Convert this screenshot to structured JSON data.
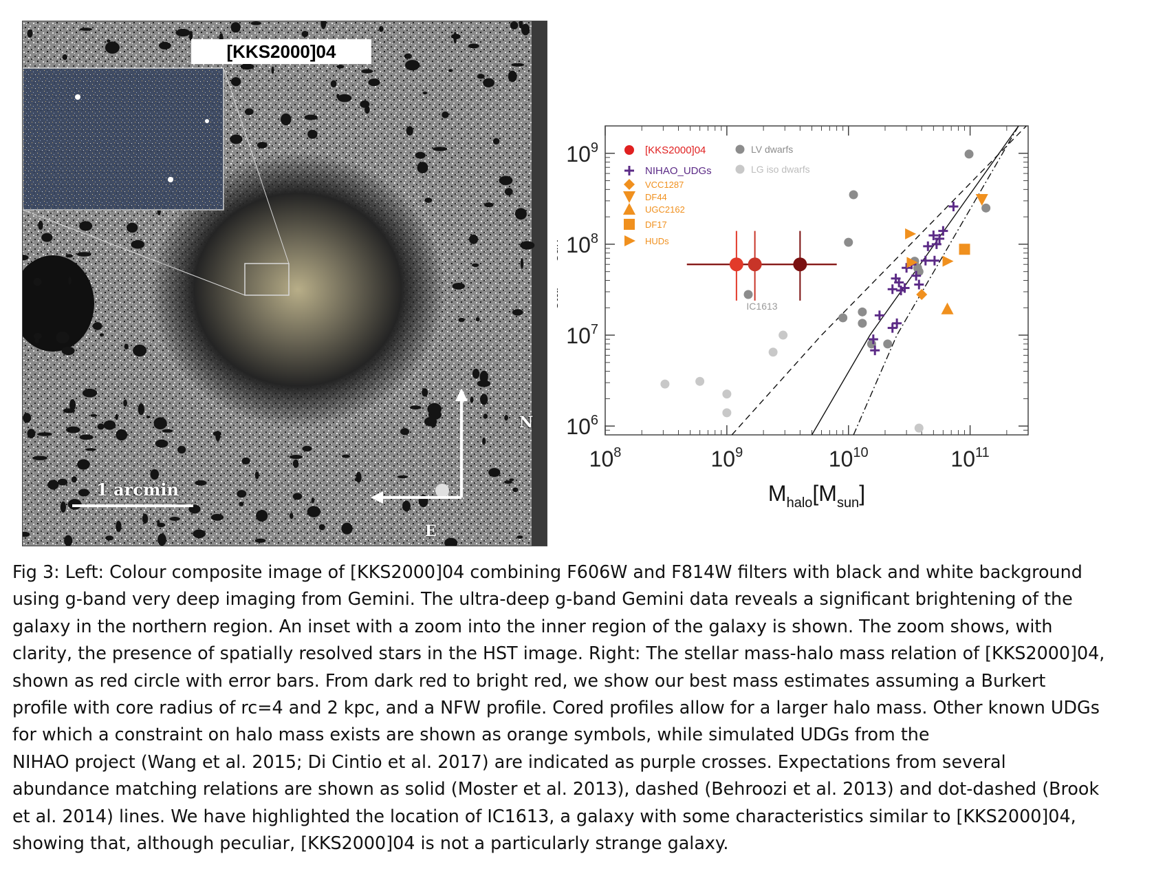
{
  "left_panel": {
    "target_label": "[KKS2000]04",
    "scale_bar_label": "1 arcmin",
    "compass_north": "N",
    "compass_east": "E"
  },
  "chart_data": {
    "type": "scatter",
    "xlabel": "M_halo[M_sun]",
    "ylabel": "M_star[M_sun]",
    "xscale": "log",
    "yscale": "log",
    "xlim": [
      100000000.0,
      300000000000.0
    ],
    "ylim": [
      800000.0,
      2000000000.0
    ],
    "x_ticks": [
      "10^8",
      "10^9",
      "10^10",
      "10^11"
    ],
    "y_ticks": [
      "10^6",
      "10^7",
      "10^8",
      "10^9"
    ],
    "legend_placement": "top-left",
    "legend": [
      {
        "label": "[KKS2000]04",
        "color": "#e02020",
        "marker": "circle"
      },
      {
        "label": "LV dwarfs",
        "color": "#8c8c8c",
        "marker": "circle"
      },
      {
        "label": "NIHAO_UDGs",
        "color": "#5b2a86",
        "marker": "cross"
      },
      {
        "label": "LG iso dwarfs",
        "color": "#c8c8c8",
        "marker": "circle"
      },
      {
        "label": "VCC1287",
        "color": "#f0901e",
        "marker": "diamond"
      },
      {
        "label": "DF44",
        "color": "#f0901e",
        "marker": "triangle-down"
      },
      {
        "label": "UGC2162",
        "color": "#f0901e",
        "marker": "triangle-up"
      },
      {
        "label": "DF17",
        "color": "#f0901e",
        "marker": "square"
      },
      {
        "label": "HUDs",
        "color": "#f0901e",
        "marker": "triangle-right"
      }
    ],
    "annotation": "IC1613",
    "series": [
      {
        "name": "[KKS2000]04",
        "marker": "circle-errorbar",
        "points": [
          {
            "x": 1200000000.0,
            "y": 60000000.0,
            "xerr": [
              470000000.0,
              8000000000.0
            ],
            "yerr": [
              24000000.0,
              140000000.0
            ],
            "color": "#e23a2a"
          },
          {
            "x": 1700000000.0,
            "y": 60000000.0,
            "xerr": [
              470000000.0,
              8000000000.0
            ],
            "yerr": [
              24000000.0,
              140000000.0
            ],
            "color": "#c83428"
          },
          {
            "x": 4000000000.0,
            "y": 60000000.0,
            "xerr": [
              470000000.0,
              8000000000.0
            ],
            "yerr": [
              24000000.0,
              140000000.0
            ],
            "color": "#7a1010"
          }
        ]
      },
      {
        "name": "LV dwarfs",
        "marker": "circle",
        "color": "#8c8c8c",
        "points": [
          [
            1500000000.0,
            28000000.0
          ],
          [
            11000000000.0,
            350000000.0
          ],
          [
            10000000000.0,
            105000000.0
          ],
          [
            9000000000.0,
            15500000.0
          ],
          [
            13000000000.0,
            18000000.0
          ],
          [
            13000000000.0,
            13500000.0
          ],
          [
            15500000000.0,
            8000000.0
          ],
          [
            21000000000.0,
            8000000.0
          ],
          [
            35000000000.0,
            65000000.0
          ],
          [
            37000000000.0,
            55000000.0
          ],
          [
            38000000000.0,
            50000000.0
          ],
          [
            98000000000.0,
            980000000.0
          ],
          [
            135000000000.0,
            250000000.0
          ]
        ]
      },
      {
        "name": "LG iso dwarfs",
        "marker": "circle",
        "color": "#c8c8c8",
        "points": [
          [
            310000000.0,
            2900000.0
          ],
          [
            600000000.0,
            3100000.0
          ],
          [
            1000000000.0,
            2250000.0
          ],
          [
            1000000000.0,
            1400000.0
          ],
          [
            2400000000.0,
            6500000.0
          ],
          [
            2900000000.0,
            10000000.0
          ],
          [
            38000000000.0,
            950000.0
          ]
        ]
      },
      {
        "name": "NIHAO_UDGs",
        "marker": "cross",
        "color": "#5b2a86",
        "points": [
          [
            16000000000.0,
            9000000.0
          ],
          [
            16500000000.0,
            6800000.0
          ],
          [
            18000000000.0,
            16500000.0
          ],
          [
            23000000000.0,
            12000000.0
          ],
          [
            25000000000.0,
            13500000.0
          ],
          [
            23000000000.0,
            32000000.0
          ],
          [
            24500000000.0,
            42000000.0
          ],
          [
            26000000000.0,
            38000000.0
          ],
          [
            27000000000.0,
            31000000.0
          ],
          [
            29000000000.0,
            33000000.0
          ],
          [
            30000000000.0,
            55000000.0
          ],
          [
            33000000000.0,
            60000000.0
          ],
          [
            36000000000.0,
            45000000.0
          ],
          [
            38000000000.0,
            36000000.0
          ],
          [
            43000000000.0,
            66000000.0
          ],
          [
            45000000000.0,
            95000000.0
          ],
          [
            50000000000.0,
            125000000.0
          ],
          [
            51000000000.0,
            66000000.0
          ],
          [
            53000000000.0,
            100000000.0
          ],
          [
            56000000000.0,
            115000000.0
          ],
          [
            60000000000.0,
            140000000.0
          ],
          [
            73000000000.0,
            260000000.0
          ]
        ]
      },
      {
        "name": "VCC1287",
        "marker": "diamond",
        "color": "#f0901e",
        "points": [
          [
            40000000000.0,
            28000000.0
          ]
        ]
      },
      {
        "name": "DF44",
        "marker": "triangle-down",
        "color": "#f0901e",
        "points": [
          [
            125000000000.0,
            310000000.0
          ]
        ]
      },
      {
        "name": "UGC2162",
        "marker": "triangle-up",
        "color": "#f0901e",
        "points": [
          [
            65000000000.0,
            19500000.0
          ]
        ]
      },
      {
        "name": "DF17",
        "marker": "square",
        "color": "#f0901e",
        "points": [
          [
            90000000000.0,
            88000000.0
          ]
        ]
      },
      {
        "name": "HUDs",
        "marker": "triangle-right",
        "color": "#f0901e",
        "points": [
          [
            32000000000.0,
            130000000.0
          ],
          [
            65000000000.0,
            65000000.0
          ],
          [
            33000000000.0,
            63000000.0
          ]
        ]
      }
    ],
    "lines": [
      {
        "style": "solid",
        "points": [
          [
            5000000000.0,
            800000.0
          ],
          [
            15000000000.0,
            10000000.0
          ],
          [
            250000000000.0,
            2000000000.0
          ]
        ]
      },
      {
        "style": "dashed",
        "points": [
          [
            1100000000.0,
            800000.0
          ],
          [
            6000000000.0,
            10000000.0
          ],
          [
            290000000000.0,
            2000000000.0
          ]
        ]
      },
      {
        "style": "dot-dashed",
        "points": [
          [
            11000000000.0,
            800000.0
          ],
          [
            25000000000.0,
            10000000.0
          ],
          [
            250000000000.0,
            2000000000.0
          ]
        ]
      }
    ]
  },
  "caption": {
    "lines": [
      "Fig 3:  Left: Colour composite image of [KKS2000]04 combining F606W and F814W filters with black and white background",
      "using g-band very deep imaging from Gemini. The ultra-deep g-band Gemini data reveals a significant brightening of the",
      "galaxy in the northern region. An inset with a zoom into the inner region of the galaxy is shown. The zoom shows, with",
      "clarity, the presence of spatially resolved stars in the HST image. Right:  The stellar mass-halo mass relation of [KKS2000]04,",
      "shown as red circle with error bars. From dark red to bright red, we show our best mass estimates assuming a Burkert",
      "profile with core radius of rc=4 and 2 kpc, and a NFW profile. Cored profiles allow for a larger halo mass. Other known UDGs",
      "for which a constraint on halo mass exists are shown as orange symbols, while simulated UDGs from the",
      "NIHAO project (Wang et al. 2015; Di Cintio et al. 2017) are indicated as purple crosses. Expectations from several",
      "abundance matching relations are shown as solid (Moster et al. 2013), dashed (Behroozi et al. 2013) and dot-dashed (Brook",
      "et al. 2014) lines. We have highlighted the location of IC1613, a galaxy with some characteristics similar to [KKS2000]04,",
      "showing that, although peculiar, [KKS2000]04 is not a particularly strange galaxy."
    ]
  }
}
